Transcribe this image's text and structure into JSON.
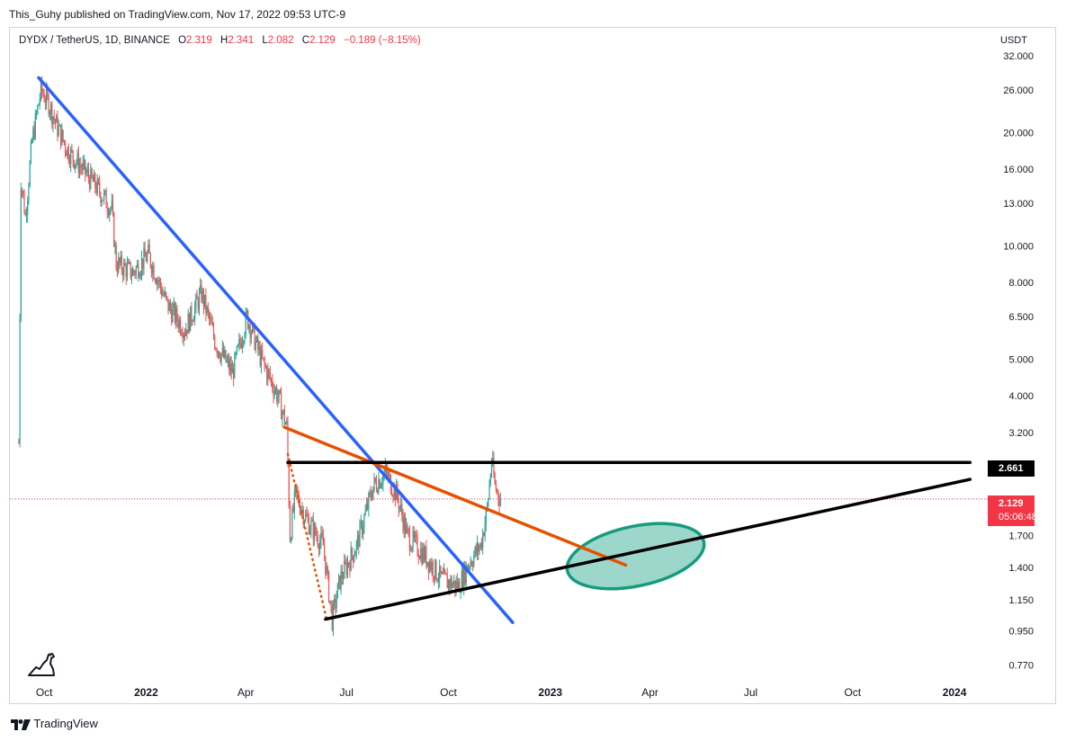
{
  "published": "This_Guhy published on TradingView.com, Nov 17, 2022 09:53 UTC-9",
  "legend": {
    "symbol": "DYDX / TetherUS, 1D, BINANCE",
    "o_label": "O",
    "o_value": "2.319",
    "h_label": "H",
    "h_value": "2.341",
    "l_label": "L",
    "l_value": "2.082",
    "c_label": "C",
    "c_value": "2.129",
    "change": "−0.189 (−8.15%)"
  },
  "currency": "USDT",
  "tags": {
    "level": "2.661",
    "last_price": "2.129",
    "countdown": "05:06:48"
  },
  "footer": {
    "brand": "TradingView"
  },
  "colors": {
    "up": "#26a69a",
    "down": "#ef5350",
    "blue_line": "#2962ff",
    "orange_line": "#e65100",
    "black_line": "#000000",
    "ellipse_fill": "#4db6a0",
    "ellipse_stroke": "#159c7d",
    "last_price": "#f23645"
  },
  "chart_data": {
    "type": "candlestick",
    "scale": "log",
    "x_ticks": [
      {
        "label": "Oct",
        "date": "2021-10-01",
        "bold": false
      },
      {
        "label": "2022",
        "date": "2022-01-01",
        "bold": true
      },
      {
        "label": "Apr",
        "date": "2022-04-01",
        "bold": false
      },
      {
        "label": "Jul",
        "date": "2022-07-01",
        "bold": false
      },
      {
        "label": "Oct",
        "date": "2022-10-01",
        "bold": false
      },
      {
        "label": "2023",
        "date": "2023-01-01",
        "bold": true
      },
      {
        "label": "Apr",
        "date": "2023-04-01",
        "bold": false
      },
      {
        "label": "Jul",
        "date": "2023-07-01",
        "bold": false
      },
      {
        "label": "Oct",
        "date": "2023-10-01",
        "bold": false
      },
      {
        "label": "2024",
        "date": "2024-01-01",
        "bold": true
      }
    ],
    "y_ticks": [
      "32.000",
      "26.000",
      "20.000",
      "16.000",
      "13.000",
      "10.000",
      "8.000",
      "6.500",
      "5.000",
      "4.000",
      "3.200",
      "2.661",
      "2.129",
      "1.700",
      "1.400",
      "1.150",
      "0.950",
      "0.770"
    ],
    "y_tick_values": [
      32,
      26,
      20,
      16,
      13,
      10,
      8,
      6.5,
      5,
      4,
      3.2,
      2.661,
      2.129,
      1.7,
      1.4,
      1.15,
      0.95,
      0.77
    ],
    "price_path": [
      [
        "2021-09-08",
        3.0
      ],
      [
        "2021-09-10",
        15.0
      ],
      [
        "2021-09-14",
        12.0
      ],
      [
        "2021-09-20",
        19.0
      ],
      [
        "2021-09-28",
        26.0
      ],
      [
        "2021-10-05",
        24.0
      ],
      [
        "2021-10-12",
        21.0
      ],
      [
        "2021-10-22",
        18.0
      ],
      [
        "2021-11-05",
        16.0
      ],
      [
        "2021-11-20",
        14.0
      ],
      [
        "2021-12-01",
        12.5
      ],
      [
        "2021-12-05",
        9.0
      ],
      [
        "2021-12-20",
        8.5
      ],
      [
        "2022-01-03",
        9.5
      ],
      [
        "2022-01-20",
        7.0
      ],
      [
        "2022-02-05",
        6.0
      ],
      [
        "2022-02-20",
        7.5
      ],
      [
        "2022-03-05",
        5.5
      ],
      [
        "2022-03-20",
        4.6
      ],
      [
        "2022-04-02",
        6.5
      ],
      [
        "2022-04-15",
        5.0
      ],
      [
        "2022-04-30",
        4.0
      ],
      [
        "2022-05-08",
        3.3
      ],
      [
        "2022-05-11",
        1.7
      ],
      [
        "2022-05-16",
        2.2
      ],
      [
        "2022-05-25",
        1.9
      ],
      [
        "2022-06-10",
        1.6
      ],
      [
        "2022-06-18",
        1.02
      ],
      [
        "2022-06-25",
        1.3
      ],
      [
        "2022-07-10",
        1.6
      ],
      [
        "2022-07-25",
        2.3
      ],
      [
        "2022-08-05",
        2.5
      ],
      [
        "2022-08-15",
        2.2
      ],
      [
        "2022-08-25",
        1.7
      ],
      [
        "2022-09-10",
        1.5
      ],
      [
        "2022-09-25",
        1.3
      ],
      [
        "2022-10-10",
        1.25
      ],
      [
        "2022-10-20",
        1.45
      ],
      [
        "2022-10-30",
        1.6
      ],
      [
        "2022-11-05",
        2.0
      ],
      [
        "2022-11-09",
        2.7
      ],
      [
        "2022-11-12",
        2.3
      ],
      [
        "2022-11-17",
        2.129
      ]
    ],
    "lines": [
      {
        "name": "blue-downtrend",
        "color": "#2962ff",
        "style": "solid",
        "from": [
          "2021-09-26",
          28.0
        ],
        "to": [
          "2022-11-28",
          1.0
        ]
      },
      {
        "name": "orange-trend",
        "color": "#e65100",
        "style": "solid",
        "from": [
          "2022-05-06",
          3.3
        ],
        "to": [
          "2023-03-10",
          1.42
        ]
      },
      {
        "name": "orange-dotted",
        "color": "#e65100",
        "style": "dotted",
        "from": [
          "2022-05-09",
          2.8
        ],
        "to": [
          "2022-06-13",
          1.02
        ]
      },
      {
        "name": "black-horizontal",
        "color": "#000000",
        "style": "solid",
        "from": [
          "2022-05-09",
          2.661
        ],
        "to": [
          "2024-01-15",
          2.661
        ]
      },
      {
        "name": "black-support",
        "color": "#000000",
        "style": "solid",
        "from": [
          "2022-06-12",
          1.02
        ],
        "to": [
          "2024-01-15",
          2.4
        ]
      }
    ],
    "ellipse": {
      "center": [
        "2023-03-19",
        1.5
      ],
      "rx_days": 63,
      "ry_ratio": 1.2
    },
    "last_price": 2.129,
    "x_range": [
      "2021-08-31",
      "2024-01-31"
    ],
    "y_range": [
      0.7,
      38.0
    ],
    "grid": false
  }
}
